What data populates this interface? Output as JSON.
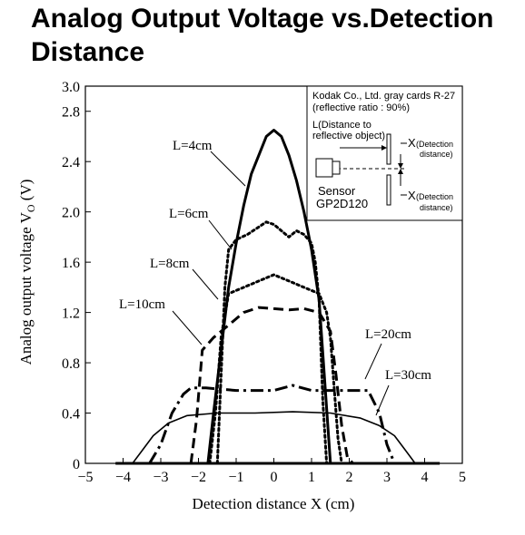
{
  "title": "Analog Output Voltage vs.Detection Distance",
  "chart_data": {
    "type": "line",
    "xlabel": "Detection distance X (cm)",
    "ylabel": "Analog output voltage V",
    "ylabel_sub": "O",
    "ylabel_unit": " (V)",
    "xlim": [
      -5,
      5
    ],
    "ylim": [
      0,
      3.0
    ],
    "x_ticks": [
      "−5",
      "−4",
      "−3",
      "−2",
      "−1",
      "0",
      "1",
      "2",
      "3",
      "4",
      "5"
    ],
    "y_ticks": [
      "0",
      "0.4",
      "0.8",
      "1.2",
      "1.6",
      "2.0",
      "2.4",
      "2.8",
      "3.0"
    ],
    "grid": false,
    "series": [
      {
        "name": "L=4cm",
        "style": "solid",
        "width": 3,
        "x": [
          -1.75,
          -1.6,
          -1.4,
          -1.2,
          -1.0,
          -0.8,
          -0.6,
          -0.4,
          -0.2,
          0.0,
          0.2,
          0.4,
          0.6,
          0.8,
          1.0,
          1.2,
          1.5,
          1.75
        ],
        "y": [
          0.0,
          0.4,
          0.9,
          1.4,
          1.75,
          2.05,
          2.3,
          2.45,
          2.6,
          2.65,
          2.6,
          2.45,
          2.25,
          2.0,
          1.7,
          1.3,
          0.0,
          0.0
        ]
      },
      {
        "name": "L=6cm",
        "style": "dotted",
        "width": 3,
        "x": [
          -1.5,
          -1.4,
          -1.3,
          -1.2,
          -1.0,
          -0.7,
          -0.4,
          -0.2,
          0.0,
          0.2,
          0.4,
          0.6,
          0.8,
          1.0,
          1.1,
          1.2,
          1.3,
          1.4
        ],
        "y": [
          0.0,
          0.7,
          1.4,
          1.7,
          1.78,
          1.82,
          1.88,
          1.92,
          1.9,
          1.85,
          1.8,
          1.85,
          1.82,
          1.75,
          1.6,
          1.3,
          0.5,
          0.0
        ]
      },
      {
        "name": "L=8cm",
        "style": "dotted",
        "width": 3,
        "x": [
          -1.7,
          -1.55,
          -1.4,
          -1.2,
          -0.8,
          -0.4,
          0.0,
          0.4,
          0.8,
          1.2,
          1.4,
          1.5,
          1.6,
          1.7,
          1.8
        ],
        "y": [
          0.0,
          0.4,
          1.0,
          1.35,
          1.4,
          1.45,
          1.5,
          1.45,
          1.4,
          1.35,
          1.2,
          1.0,
          0.6,
          0.2,
          0.0
        ]
      },
      {
        "name": "L=10cm",
        "style": "dashed",
        "width": 3,
        "x": [
          -2.2,
          -2.05,
          -1.9,
          -1.6,
          -1.2,
          -0.8,
          -0.4,
          0.0,
          0.4,
          0.8,
          1.2,
          1.5,
          1.65,
          1.8,
          1.95,
          2.1
        ],
        "y": [
          0.0,
          0.35,
          0.9,
          1.0,
          1.1,
          1.2,
          1.24,
          1.23,
          1.22,
          1.23,
          1.2,
          1.05,
          0.7,
          0.3,
          0.05,
          0.0
        ]
      },
      {
        "name": "L=20cm",
        "style": "dashdot",
        "width": 3,
        "x": [
          -3.3,
          -3.0,
          -2.7,
          -2.4,
          -2.2,
          -1.8,
          -1.0,
          0.0,
          0.5,
          1.0,
          2.0,
          2.5,
          2.8,
          3.0,
          3.2
        ],
        "y": [
          0.0,
          0.15,
          0.4,
          0.55,
          0.6,
          0.6,
          0.58,
          0.58,
          0.62,
          0.58,
          0.58,
          0.58,
          0.4,
          0.15,
          0.0
        ]
      },
      {
        "name": "L=30cm",
        "style": "solid",
        "width": 1.6,
        "x": [
          -3.75,
          -3.5,
          -3.2,
          -2.8,
          -2.3,
          -1.5,
          -0.5,
          0.5,
          1.5,
          2.3,
          2.8,
          3.2,
          3.5,
          3.75
        ],
        "y": [
          0.0,
          0.1,
          0.22,
          0.32,
          0.38,
          0.4,
          0.4,
          0.41,
          0.4,
          0.36,
          0.3,
          0.22,
          0.1,
          0.0
        ]
      },
      {
        "name": "",
        "style": "solid",
        "width": 3,
        "x": [
          -4.2,
          -3.0,
          -1.8,
          1.8,
          3.0,
          4.4
        ],
        "y": [
          0.0,
          0.0,
          0.0,
          0.0,
          0.0,
          0.0
        ]
      }
    ],
    "labels": [
      "L=4cm",
      "L=6cm",
      "L=8cm",
      "L=10cm",
      "L=20cm",
      "L=30cm"
    ]
  },
  "inset": {
    "line1": "Kodak Co., Ltd. gray cards R-27",
    "line2": "(reflective ratio : 90%)",
    "distance_label_1": "L(Distance to",
    "distance_label_2": "reflective object)",
    "x_label_top": "X",
    "x_label_top_detail_1": "(Detection",
    "x_label_top_detail_2": "distance)",
    "sensor_label": "Sensor",
    "model_label": "GP2D120",
    "x_label_bottom": "X",
    "x_label_bottom_detail_1": "(Detection",
    "x_label_bottom_detail_2": "distance)"
  }
}
